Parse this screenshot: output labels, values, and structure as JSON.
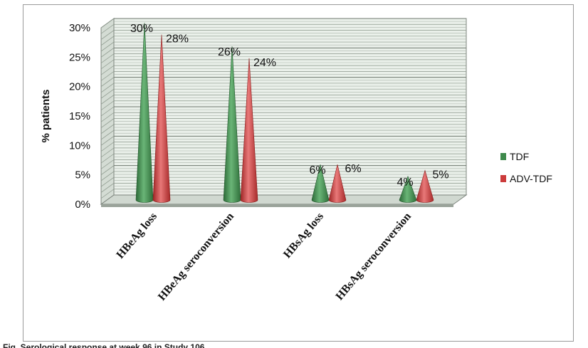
{
  "chart_data": {
    "type": "bar",
    "style": "3d-cone",
    "categories": [
      "HBeAg loss",
      "HBeAg seroconversion",
      "HBsAg loss",
      "HBsAg seroconversion"
    ],
    "series": [
      {
        "name": "TDF",
        "values": [
          30,
          26,
          6,
          4
        ],
        "labels": [
          "30%",
          "26%",
          "6%",
          "4%"
        ]
      },
      {
        "name": "ADV-TDF",
        "values": [
          28,
          24,
          6,
          5
        ],
        "labels": [
          "28%",
          "24%",
          "6%",
          "5%"
        ]
      }
    ],
    "ylabel": "% patients",
    "xlabel": "",
    "ylim": [
      0,
      30
    ],
    "yticks": [
      0,
      5,
      10,
      15,
      20,
      25,
      30
    ],
    "ytick_labels": [
      "0%",
      "5%",
      "10%",
      "15%",
      "20%",
      "25%",
      "30%"
    ],
    "grid": true,
    "legend": "right",
    "colors": {
      "TDF": "#3f8a4c",
      "ADV-TDF": "#cc3b3b",
      "wall": "#eaf0ea",
      "grid": "#8a968a",
      "floor": "#d0d8d0"
    }
  },
  "caption": "Fig. Serological response at week 96 in Study 106"
}
